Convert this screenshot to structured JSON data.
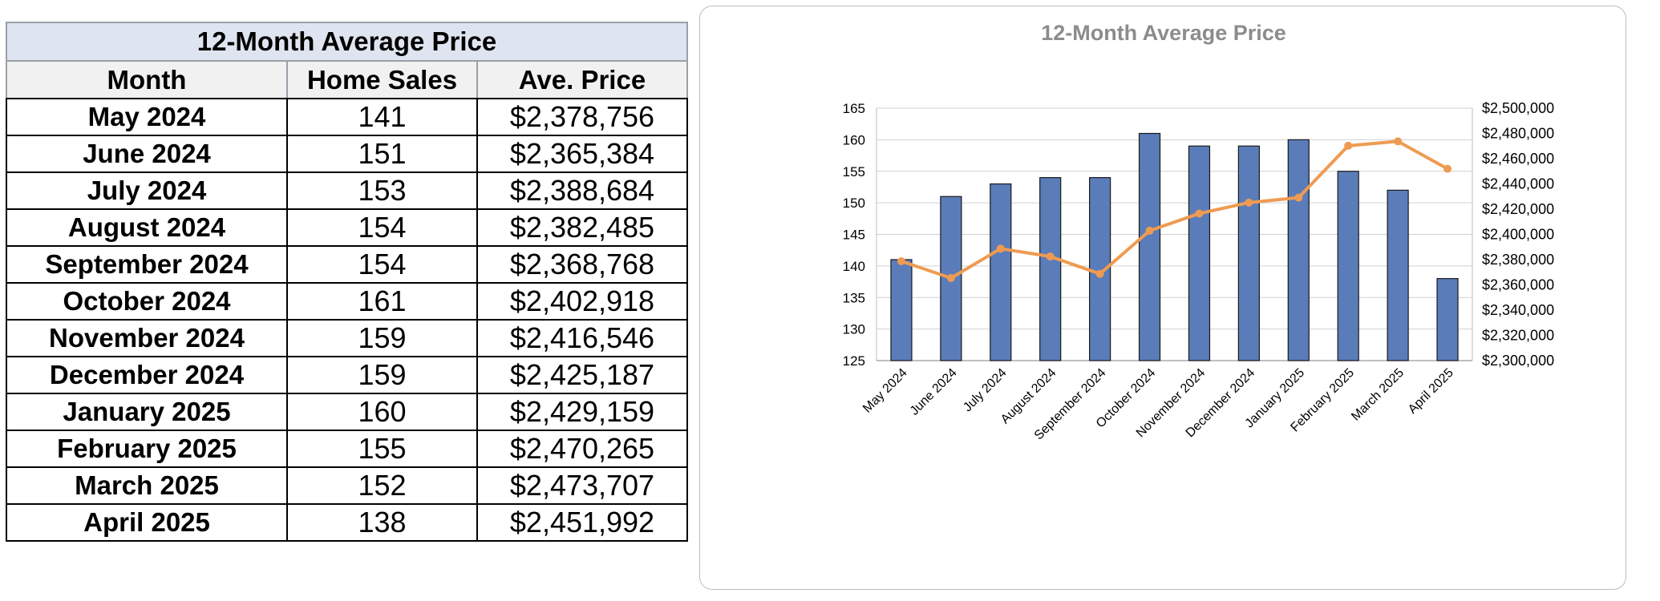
{
  "table": {
    "title": "12-Month Average Price",
    "headers": [
      "Month",
      "Home Sales",
      "Ave. Price"
    ],
    "rows": [
      {
        "month": "May 2024",
        "sales": "141",
        "price": "$2,378,756"
      },
      {
        "month": "June 2024",
        "sales": "151",
        "price": "$2,365,384"
      },
      {
        "month": "July 2024",
        "sales": "153",
        "price": "$2,388,684"
      },
      {
        "month": "August 2024",
        "sales": "154",
        "price": "$2,382,485"
      },
      {
        "month": "September 2024",
        "sales": "154",
        "price": "$2,368,768"
      },
      {
        "month": "October 2024",
        "sales": "161",
        "price": "$2,402,918"
      },
      {
        "month": "November 2024",
        "sales": "159",
        "price": "$2,416,546"
      },
      {
        "month": "December 2024",
        "sales": "159",
        "price": "$2,425,187"
      },
      {
        "month": "January 2025",
        "sales": "160",
        "price": "$2,429,159"
      },
      {
        "month": "February 2025",
        "sales": "155",
        "price": "$2,470,265"
      },
      {
        "month": "March 2025",
        "sales": "152",
        "price": "$2,473,707"
      },
      {
        "month": "April 2025",
        "sales": "138",
        "price": "$2,451,992"
      }
    ]
  },
  "chart_data": {
    "type": "bar",
    "title": "12-Month Average Price",
    "categories": [
      "May 2024",
      "June 2024",
      "July 2024",
      "August 2024",
      "September 2024",
      "October 2024",
      "November 2024",
      "December 2024",
      "January 2025",
      "February 2025",
      "March 2025",
      "April 2025"
    ],
    "series": [
      {
        "type": "bar",
        "axis": "left",
        "color": "#5a7cb9",
        "values": [
          141,
          151,
          153,
          154,
          154,
          161,
          159,
          159,
          160,
          155,
          152,
          138
        ]
      },
      {
        "type": "line",
        "axis": "right",
        "color": "#ee9b52",
        "values": [
          2378756,
          2365384,
          2388684,
          2382485,
          2368768,
          2402918,
          2416546,
          2425187,
          2429159,
          2470265,
          2473707,
          2451992
        ]
      }
    ],
    "ylim": [
      125,
      165
    ],
    "yticks": [
      "165",
      "160",
      "155",
      "150",
      "145",
      "140",
      "135",
      "130",
      "125"
    ],
    "y2lim": [
      2300000,
      2500000
    ],
    "y2ticks": [
      "$2,500,000",
      "$2,480,000",
      "$2,460,000",
      "$2,440,000",
      "$2,420,000",
      "$2,400,000",
      "$2,380,000",
      "$2,360,000",
      "$2,340,000",
      "$2,320,000",
      "$2,300,000"
    ],
    "grid": true,
    "legend": "none"
  }
}
